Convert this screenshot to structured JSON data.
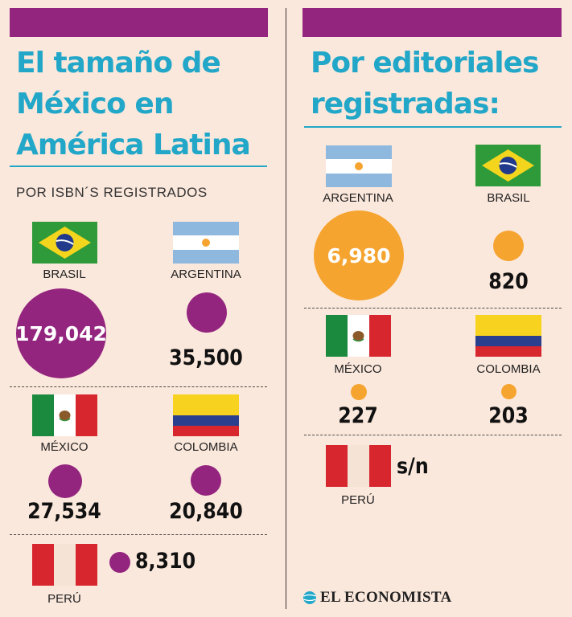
{
  "colors": {
    "accent_purple": "#94257f",
    "title_blue": "#22a7c8",
    "bubble_orange": "#f6a430",
    "background": "#fbe8dc"
  },
  "left": {
    "title_lines": [
      "El tamaño de",
      "México en",
      "América Latina"
    ],
    "subtitle": "POR ISBN´S REGISTRADOS"
  },
  "right": {
    "title_lines": [
      "Por editoriales",
      "registradas:"
    ]
  },
  "logo_text": "EL ECONOMISTA",
  "chart_data": [
    {
      "type": "bubble",
      "title": "El tamaño de México en América Latina",
      "subtitle": "POR ISBN´S REGISTRADOS",
      "categories": [
        "BRASIL",
        "ARGENTINA",
        "MÉXICO",
        "COLOMBIA",
        "PERÚ"
      ],
      "values": [
        179042,
        35500,
        27534,
        20840,
        8310
      ],
      "labels": [
        "179,042",
        "35,500",
        "27,534",
        "20,840",
        "8,310"
      ],
      "bubble_color": "#94257f"
    },
    {
      "type": "bubble",
      "title": "Por editoriales registradas:",
      "categories": [
        "ARGENTINA",
        "BRASIL",
        "MÉXICO",
        "COLOMBIA",
        "PERÚ"
      ],
      "values": [
        6980,
        820,
        227,
        203,
        null
      ],
      "labels": [
        "6,980",
        "820",
        "227",
        "203",
        "s/n"
      ],
      "bubble_color": "#f6a430"
    }
  ]
}
